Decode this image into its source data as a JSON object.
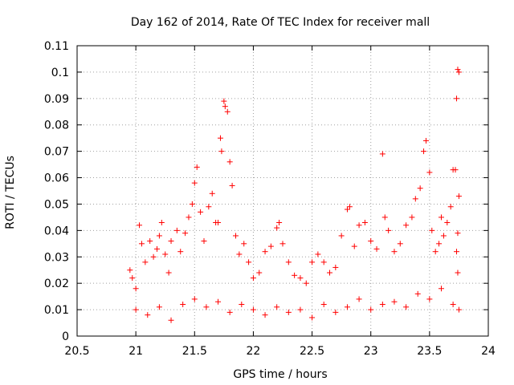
{
  "chart_data": {
    "type": "scatter",
    "title": "Day 162 of 2014, Rate Of TEC Index for receiver mall",
    "xlabel": "GPS time / hours",
    "ylabel": "ROTI / TECUs",
    "xlim": [
      20.5,
      24
    ],
    "ylim": [
      0,
      0.11
    ],
    "x_ticks": [
      "20.5",
      "21",
      "21.5",
      "22",
      "22.5",
      "23",
      "23.5",
      "24"
    ],
    "y_ticks": [
      "0",
      "0.01",
      "0.02",
      "0.03",
      "0.04",
      "0.05",
      "0.06",
      "0.07",
      "0.08",
      "0.09",
      "0.1",
      "0.11"
    ],
    "grid": true,
    "marker": "+",
    "color": "#ff0000",
    "series": [
      {
        "name": "ROTI",
        "points": [
          [
            20.95,
            0.025
          ],
          [
            20.97,
            0.022
          ],
          [
            21.0,
            0.018
          ],
          [
            21.03,
            0.042
          ],
          [
            21.05,
            0.035
          ],
          [
            21.08,
            0.028
          ],
          [
            21.12,
            0.036
          ],
          [
            21.15,
            0.03
          ],
          [
            21.18,
            0.033
          ],
          [
            21.2,
            0.038
          ],
          [
            21.22,
            0.043
          ],
          [
            21.25,
            0.031
          ],
          [
            21.28,
            0.024
          ],
          [
            21.3,
            0.036
          ],
          [
            21.35,
            0.04
          ],
          [
            21.38,
            0.032
          ],
          [
            21.42,
            0.039
          ],
          [
            21.45,
            0.045
          ],
          [
            21.48,
            0.05
          ],
          [
            21.5,
            0.058
          ],
          [
            21.52,
            0.064
          ],
          [
            21.55,
            0.047
          ],
          [
            21.58,
            0.036
          ],
          [
            21.62,
            0.049
          ],
          [
            21.65,
            0.054
          ],
          [
            21.68,
            0.043
          ],
          [
            21.7,
            0.043
          ],
          [
            21.72,
            0.075
          ],
          [
            21.73,
            0.07
          ],
          [
            21.75,
            0.089
          ],
          [
            21.76,
            0.087
          ],
          [
            21.78,
            0.085
          ],
          [
            21.8,
            0.066
          ],
          [
            21.82,
            0.057
          ],
          [
            21.85,
            0.038
          ],
          [
            21.88,
            0.031
          ],
          [
            21.92,
            0.035
          ],
          [
            21.96,
            0.028
          ],
          [
            22.0,
            0.022
          ],
          [
            22.05,
            0.024
          ],
          [
            22.1,
            0.032
          ],
          [
            22.15,
            0.034
          ],
          [
            22.2,
            0.041
          ],
          [
            22.22,
            0.043
          ],
          [
            22.25,
            0.035
          ],
          [
            22.3,
            0.028
          ],
          [
            22.35,
            0.023
          ],
          [
            22.4,
            0.022
          ],
          [
            22.45,
            0.02
          ],
          [
            22.5,
            0.028
          ],
          [
            22.55,
            0.031
          ],
          [
            22.6,
            0.028
          ],
          [
            22.65,
            0.024
          ],
          [
            22.7,
            0.026
          ],
          [
            22.75,
            0.038
          ],
          [
            22.8,
            0.048
          ],
          [
            22.82,
            0.049
          ],
          [
            22.86,
            0.034
          ],
          [
            22.9,
            0.042
          ],
          [
            22.95,
            0.043
          ],
          [
            23.0,
            0.036
          ],
          [
            23.05,
            0.033
          ],
          [
            23.1,
            0.069
          ],
          [
            23.12,
            0.045
          ],
          [
            23.15,
            0.04
          ],
          [
            23.2,
            0.032
          ],
          [
            23.25,
            0.035
          ],
          [
            23.3,
            0.042
          ],
          [
            23.35,
            0.045
          ],
          [
            23.38,
            0.052
          ],
          [
            23.42,
            0.056
          ],
          [
            23.45,
            0.07
          ],
          [
            23.47,
            0.074
          ],
          [
            23.5,
            0.062
          ],
          [
            23.52,
            0.04
          ],
          [
            23.55,
            0.032
          ],
          [
            23.58,
            0.035
          ],
          [
            23.6,
            0.045
          ],
          [
            23.62,
            0.038
          ],
          [
            23.65,
            0.043
          ],
          [
            23.68,
            0.049
          ],
          [
            23.7,
            0.063
          ],
          [
            23.72,
            0.063
          ],
          [
            23.73,
            0.09
          ],
          [
            23.74,
            0.101
          ],
          [
            23.75,
            0.1
          ],
          [
            23.75,
            0.053
          ],
          [
            23.74,
            0.039
          ],
          [
            23.73,
            0.032
          ],
          [
            23.74,
            0.024
          ],
          [
            21.0,
            0.01
          ],
          [
            21.1,
            0.008
          ],
          [
            21.2,
            0.011
          ],
          [
            21.3,
            0.006
          ],
          [
            21.4,
            0.012
          ],
          [
            21.5,
            0.014
          ],
          [
            21.6,
            0.011
          ],
          [
            21.7,
            0.013
          ],
          [
            21.8,
            0.009
          ],
          [
            21.9,
            0.012
          ],
          [
            22.0,
            0.01
          ],
          [
            22.1,
            0.008
          ],
          [
            22.2,
            0.011
          ],
          [
            22.3,
            0.009
          ],
          [
            22.4,
            0.01
          ],
          [
            22.5,
            0.007
          ],
          [
            22.6,
            0.012
          ],
          [
            22.7,
            0.009
          ],
          [
            22.8,
            0.011
          ],
          [
            22.9,
            0.014
          ],
          [
            23.0,
            0.01
          ],
          [
            23.1,
            0.012
          ],
          [
            23.2,
            0.013
          ],
          [
            23.3,
            0.011
          ],
          [
            23.4,
            0.016
          ],
          [
            23.5,
            0.014
          ],
          [
            23.6,
            0.018
          ],
          [
            23.7,
            0.012
          ],
          [
            23.75,
            0.01
          ]
        ]
      }
    ]
  }
}
